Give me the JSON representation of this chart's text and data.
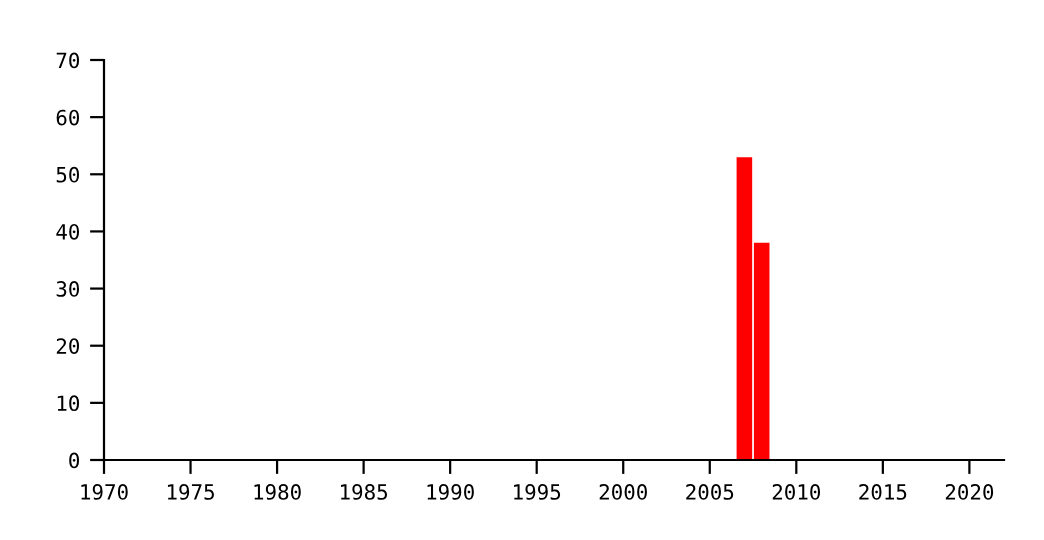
{
  "chart_data": {
    "type": "bar",
    "x": [
      2007,
      2008
    ],
    "values": [
      53,
      38
    ],
    "color": "#ff0000",
    "xlim": [
      1970,
      2022
    ],
    "xticks": [
      1970,
      1975,
      1980,
      1985,
      1990,
      1995,
      2000,
      2005,
      2010,
      2015,
      2020
    ],
    "ylim": [
      0,
      70
    ],
    "yticks": [
      0,
      10,
      20,
      30,
      40,
      50,
      60,
      70
    ],
    "grid": false
  }
}
